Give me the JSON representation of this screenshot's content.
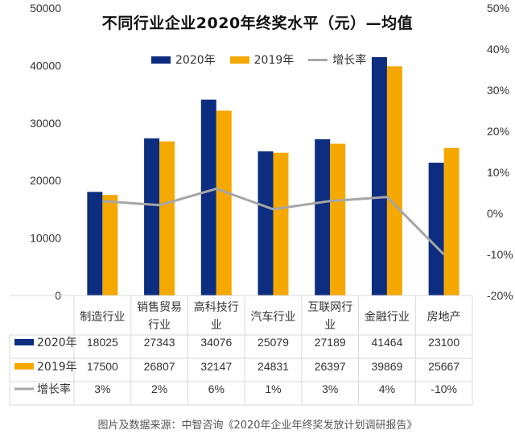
{
  "title": "不同行业企业2020年终奖水平（元）—均值",
  "source": "图片及数据来源：中智咨询《2020年企业年终奖发放计划调研报告》",
  "colors": {
    "s2020": "#0d2d80",
    "s2019": "#f5a800",
    "growth": "#a6a6a6",
    "grid": "#d9d9d9",
    "text": "#333333"
  },
  "chart_data": {
    "type": "bar",
    "title": "不同行业企业2020年终奖水平（元）—均值",
    "categories": [
      "制造行业",
      "销售贸易行业",
      "高科技行业",
      "汽车行业",
      "互联网行业",
      "金融行业",
      "房地产"
    ],
    "category_lines": [
      [
        "制造行业"
      ],
      [
        "销售贸易",
        "行业"
      ],
      [
        "高科技行",
        "业"
      ],
      [
        "汽车行业"
      ],
      [
        "互联网行",
        "业"
      ],
      [
        "金融行业"
      ],
      [
        "房地产"
      ]
    ],
    "series": [
      {
        "name": "2020年",
        "type": "bar",
        "axis": "left",
        "values": [
          18025,
          27343,
          34076,
          25079,
          27189,
          41464,
          23100
        ]
      },
      {
        "name": "2019年",
        "type": "bar",
        "axis": "left",
        "values": [
          17500,
          26807,
          32147,
          24831,
          26397,
          39869,
          25667
        ]
      },
      {
        "name": "增长率",
        "type": "line",
        "axis": "right",
        "values": [
          3,
          2,
          6,
          1,
          3,
          4,
          -10
        ]
      }
    ],
    "table_labels": [
      [
        "18025",
        "27343",
        "34076",
        "25079",
        "27189",
        "41464",
        "23100"
      ],
      [
        "17500",
        "26807",
        "32147",
        "24831",
        "26397",
        "39869",
        "25667"
      ],
      [
        "3%",
        "2%",
        "6%",
        "1%",
        "3%",
        "4%",
        "-10%"
      ]
    ],
    "y_left": {
      "min": 0,
      "max": 50000,
      "ticks": [
        "0",
        "10000",
        "20000",
        "30000",
        "40000",
        "50000"
      ]
    },
    "y_right": {
      "min": -20,
      "max": 50,
      "ticks": [
        "-20%",
        "-10%",
        "0%",
        "10%",
        "20%",
        "30%",
        "40%",
        "50%"
      ]
    },
    "legend_position": "top-center",
    "grid": false
  }
}
